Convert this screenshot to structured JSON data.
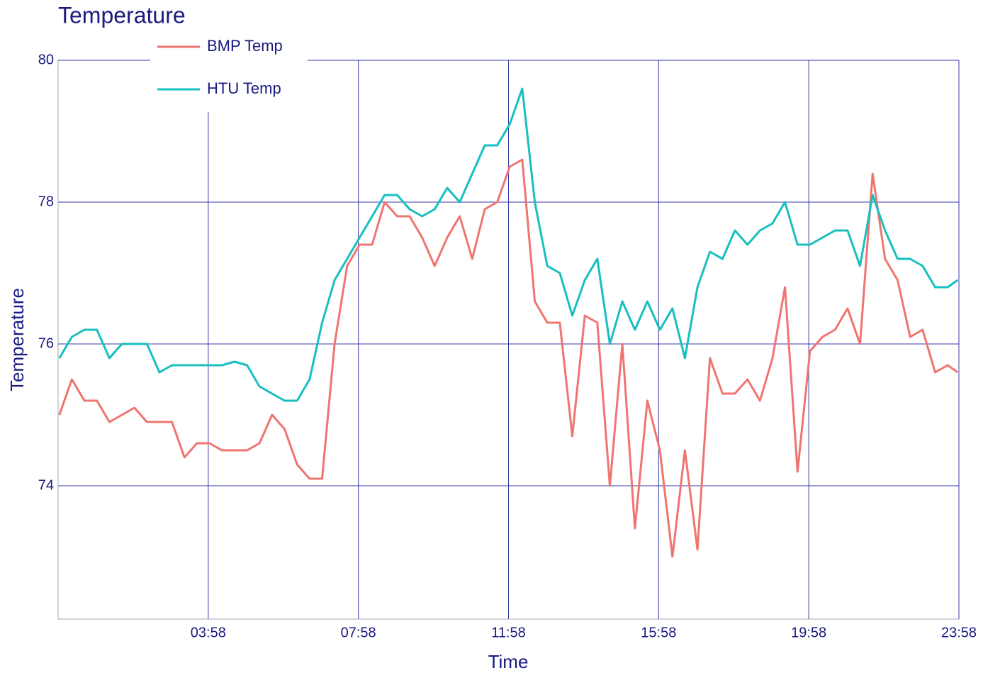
{
  "chart_data": {
    "type": "line",
    "title": "Temperature",
    "x_label": "Time",
    "y_label": "Temperature",
    "x": [
      0,
      20,
      40,
      60,
      80,
      100,
      120,
      140,
      160,
      180,
      200,
      220,
      240,
      260,
      280,
      300,
      320,
      340,
      360,
      380,
      400,
      420,
      440,
      460,
      480,
      500,
      520,
      540,
      560,
      580,
      600,
      620,
      640,
      660,
      680,
      700,
      720,
      740,
      760,
      780,
      800,
      820,
      840,
      860,
      880,
      900,
      920,
      940,
      960,
      980,
      1000,
      1020,
      1040,
      1060,
      1080,
      1100,
      1120,
      1140,
      1160,
      1180,
      1200,
      1220,
      1240,
      1260,
      1280,
      1300,
      1320,
      1340,
      1360,
      1380,
      1400,
      1420,
      1436
    ],
    "series": [
      {
        "name": "BMP Temp",
        "color": "#f07470",
        "values": [
          75.0,
          75.5,
          75.2,
          75.2,
          74.9,
          75.0,
          75.1,
          74.9,
          74.9,
          74.9,
          74.4,
          74.6,
          74.6,
          74.5,
          74.5,
          74.5,
          74.6,
          75.0,
          74.8,
          74.3,
          74.1,
          74.1,
          76.0,
          77.1,
          77.4,
          77.4,
          78.0,
          77.8,
          77.8,
          77.5,
          77.1,
          77.5,
          77.8,
          77.2,
          77.9,
          78.0,
          78.5,
          78.6,
          76.6,
          76.3,
          76.3,
          74.7,
          76.4,
          76.3,
          74.0,
          76.0,
          73.4,
          75.2,
          74.5,
          73.0,
          74.5,
          73.1,
          75.8,
          75.3,
          75.3,
          75.5,
          75.2,
          75.8,
          76.8,
          74.2,
          75.9,
          76.1,
          76.2,
          76.5,
          76.0,
          78.4,
          77.2,
          76.9,
          76.1,
          76.2,
          75.6,
          75.7,
          75.6
        ]
      },
      {
        "name": "HTU Temp",
        "color": "#17bfbf",
        "values": [
          75.8,
          76.1,
          76.2,
          76.2,
          75.8,
          76.0,
          76.0,
          76.0,
          75.6,
          75.7,
          75.7,
          75.7,
          75.7,
          75.7,
          75.75,
          75.7,
          75.4,
          75.3,
          75.2,
          75.2,
          75.5,
          76.3,
          76.9,
          77.2,
          77.5,
          77.8,
          78.1,
          78.1,
          77.9,
          77.8,
          77.9,
          78.2,
          78.0,
          78.4,
          78.8,
          78.8,
          79.1,
          79.6,
          78.0,
          77.1,
          77.0,
          76.4,
          76.9,
          77.2,
          76.0,
          76.6,
          76.2,
          76.6,
          76.2,
          76.5,
          75.8,
          76.8,
          77.3,
          77.2,
          77.6,
          77.4,
          77.6,
          77.7,
          78.0,
          77.4,
          77.4,
          77.5,
          77.6,
          77.6,
          77.1,
          78.1,
          77.6,
          77.2,
          77.2,
          77.1,
          76.8,
          76.8,
          76.9
        ]
      }
    ],
    "xlim": [
      -2,
      1438
    ],
    "xticks": [
      {
        "value": 238,
        "label": "03:58"
      },
      {
        "value": 478,
        "label": "07:58"
      },
      {
        "value": 718,
        "label": "11:58"
      },
      {
        "value": 958,
        "label": "15:58"
      },
      {
        "value": 1198,
        "label": "19:58"
      },
      {
        "value": 1438,
        "label": "23:58"
      }
    ],
    "ylim": [
      72.12,
      80
    ],
    "yticks": [
      74,
      76,
      78,
      80
    ],
    "grid": true
  }
}
